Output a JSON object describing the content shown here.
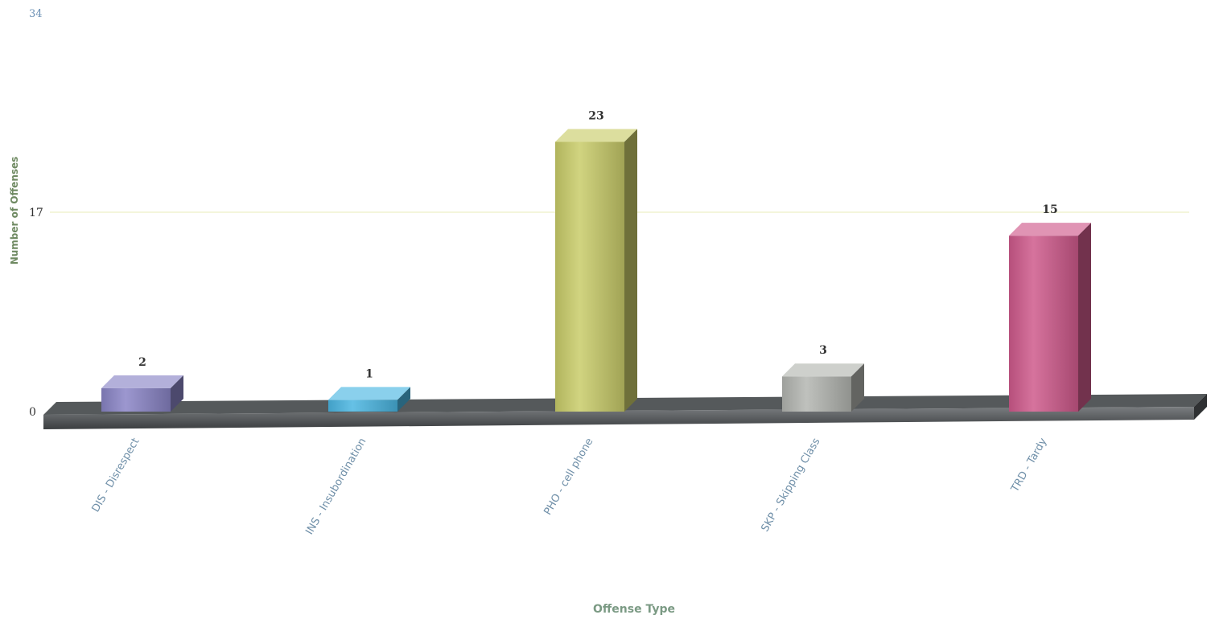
{
  "chart_data": {
    "type": "bar",
    "title": "",
    "xlabel": "Offense Type",
    "ylabel": "Number of Offenses",
    "categories": [
      "DIS - Disrespect",
      "INS - Insubordination",
      "PHO - cell phone",
      "SKP - Skipping Class",
      "TRD - Tardy"
    ],
    "values": [
      2,
      1,
      23,
      3,
      15
    ],
    "value_labels": [
      "2",
      "1",
      "23",
      "3",
      "15"
    ],
    "yticks": [
      "0",
      "17",
      "34"
    ],
    "ylim": [
      0,
      34
    ],
    "grid": true,
    "colors": [
      "#8a85c6",
      "#4bb6e2",
      "#c9cc6a",
      "#b4b6b1",
      "#cf5a8c"
    ],
    "style": "3d-bars"
  }
}
